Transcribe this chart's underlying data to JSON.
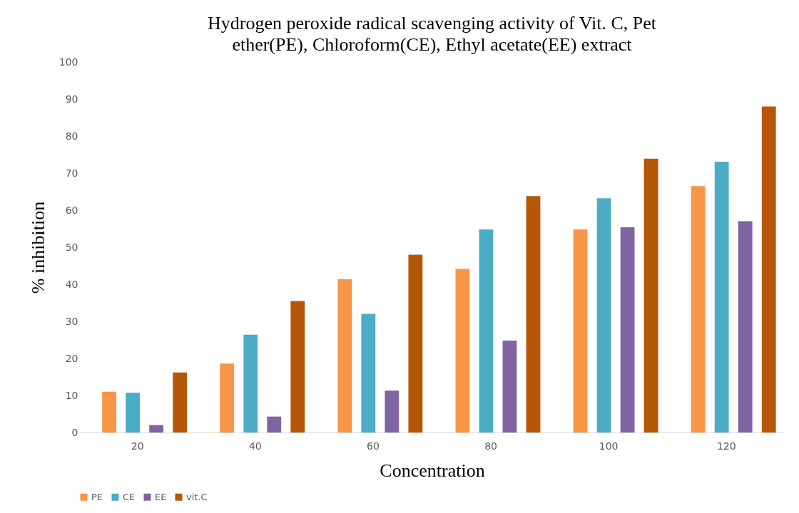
{
  "chart_data": {
    "type": "bar",
    "title": "Hydrogen peroxide radical scavenging activity of Vit. C, Pet ether(PE), Chloroform(CE), Ethyl acetate(EE) extract",
    "xlabel": "Concentration",
    "ylabel": "% inhibition",
    "categories": [
      "20",
      "40",
      "60",
      "80",
      "100",
      "120"
    ],
    "series": [
      {
        "name": "PE",
        "color": "#f79646",
        "values": [
          11.0,
          18.6,
          41.4,
          44.2,
          54.8,
          66.5
        ]
      },
      {
        "name": "CE",
        "color": "#4bacc6",
        "values": [
          10.7,
          26.4,
          32.0,
          54.8,
          63.2,
          73.1
        ]
      },
      {
        "name": "EE",
        "color": "#8064a2",
        "values": [
          2.0,
          4.3,
          11.3,
          24.8,
          55.4,
          57.0
        ]
      },
      {
        "name": "vit.C",
        "color": "#b65708",
        "values": [
          16.2,
          35.5,
          48.0,
          63.8,
          73.9,
          88.0
        ]
      }
    ],
    "ylim": [
      0,
      100
    ],
    "yticks": [
      0,
      10,
      20,
      30,
      40,
      50,
      60,
      70,
      80,
      90,
      100
    ],
    "grid": false,
    "legend": "bottom"
  }
}
